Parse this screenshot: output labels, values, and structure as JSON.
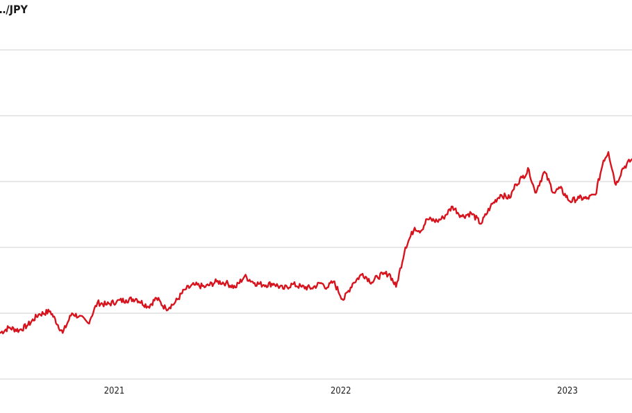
{
  "chart_data": {
    "type": "line",
    "title": "…/JPY",
    "xlabel": "",
    "ylabel": "",
    "x_tick_labels": [
      "2021",
      "2022",
      "2023"
    ],
    "grid": true,
    "legend": "none",
    "colors": {
      "line": "#d7141e",
      "grid": "#cfcfcf",
      "text": "#222222"
    },
    "ylim": [
      100,
      150
    ],
    "xlim": [
      "2020-07-01",
      "2023-04-15"
    ],
    "series": [
      {
        "x": [
          "2020-07-01",
          "2020-07-15",
          "2020-08-01",
          "2020-08-15",
          "2020-09-01",
          "2020-09-20",
          "2020-10-10",
          "2020-10-25",
          "2020-11-05",
          "2020-11-20",
          "2020-12-05",
          "2020-12-20",
          "2021-01-05",
          "2021-01-20",
          "2021-02-05",
          "2021-02-25",
          "2021-03-10",
          "2021-03-25",
          "2021-04-08",
          "2021-04-25",
          "2021-05-10",
          "2021-05-28",
          "2021-06-15",
          "2021-06-30",
          "2021-07-15",
          "2021-07-30",
          "2021-08-15",
          "2021-08-30",
          "2021-09-15",
          "2021-09-30",
          "2021-10-15",
          "2021-10-30",
          "2021-11-15",
          "2021-11-30",
          "2021-12-10",
          "2021-12-20",
          "2022-01-05",
          "2022-01-20",
          "2022-02-05",
          "2022-02-20",
          "2022-03-01",
          "2022-03-10",
          "2022-03-20",
          "2022-03-31",
          "2022-04-15",
          "2022-04-30",
          "2022-05-10",
          "2022-05-20",
          "2022-06-05",
          "2022-06-15",
          "2022-06-30",
          "2022-07-15",
          "2022-07-30",
          "2022-08-15",
          "2022-08-30",
          "2022-09-15",
          "2022-09-30",
          "2022-10-10",
          "2022-10-20",
          "2022-10-31",
          "2022-11-10",
          "2022-11-25",
          "2022-12-10",
          "2022-12-20",
          "2023-01-05",
          "2023-01-20",
          "2023-02-01",
          "2023-02-15",
          "2023-02-28",
          "2023-03-08",
          "2023-03-20",
          "2023-03-31",
          "2023-04-15"
        ],
        "y": [
          107.0,
          107.8,
          107.4,
          108.2,
          109.8,
          110.3,
          107.0,
          110.0,
          109.5,
          108.5,
          111.6,
          111.3,
          111.8,
          112.0,
          112.2,
          111.0,
          112.3,
          110.7,
          111.5,
          113.6,
          114.3,
          114.0,
          114.8,
          114.6,
          113.9,
          115.6,
          114.6,
          114.3,
          114.5,
          113.7,
          114.4,
          114.0,
          113.8,
          114.6,
          113.9,
          114.8,
          112.0,
          114.5,
          116.0,
          114.7,
          115.5,
          115.9,
          116.0,
          114.0,
          120.0,
          123.0,
          122.5,
          124.3,
          124.0,
          124.5,
          126.2,
          124.7,
          125.2,
          123.6,
          126.2,
          128.0,
          127.5,
          129.6,
          130.6,
          131.8,
          128.3,
          131.5,
          128.3,
          129.0,
          127.0,
          127.5,
          127.4,
          128.0,
          133.2,
          134.5,
          129.5,
          132.0,
          133.4
        ]
      }
    ]
  }
}
